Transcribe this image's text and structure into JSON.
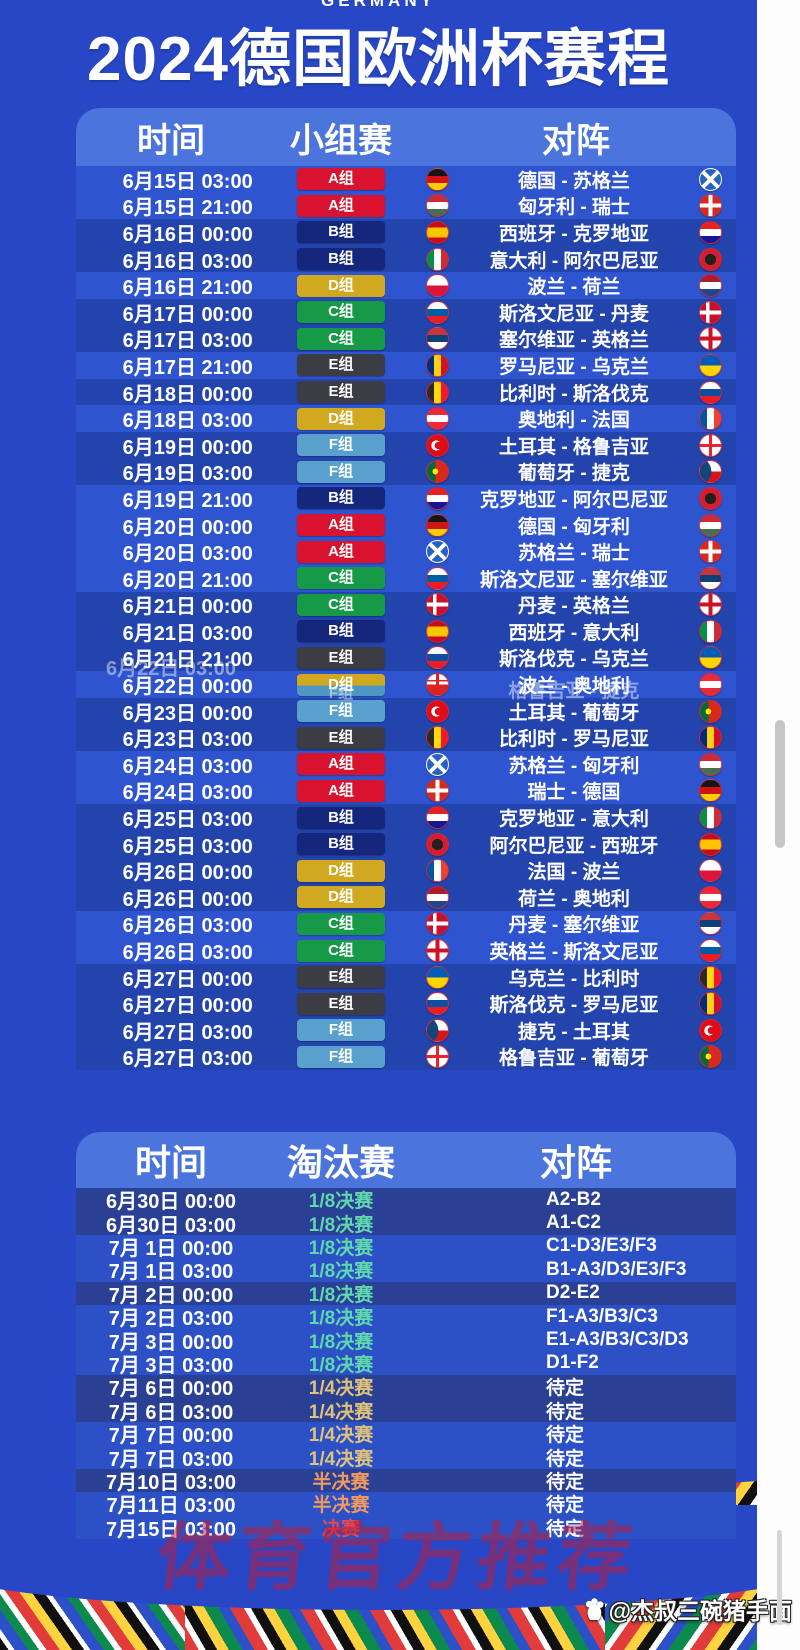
{
  "page": {
    "eyebrow": "GERMANY",
    "title": "2024德国欧洲杯赛程",
    "watermark": "体育官方推荐",
    "credit": "@杰叔三碗猪手面"
  },
  "colors": {
    "poster_blue": "#2847c7",
    "header_bar_blue": "#4b74dc",
    "row_light": "#2e54cf",
    "row_dark": "#2343ad",
    "group_A": "#d8122f",
    "group_B": "#15277d",
    "group_C": "#169a47",
    "group_D": "#d1a920",
    "group_E": "#3c3c44",
    "group_F": "#5aa0cf",
    "round_eighth": "#5fd8ac",
    "round_quarter": "#dec27c",
    "round_semi": "#f09a60",
    "round_final": "#e8474f",
    "watermark_red": "rgba(195,25,50,0.5)"
  },
  "group_table": {
    "columns": [
      "时间",
      "小组赛",
      "对阵"
    ],
    "rows": [
      {
        "time": "6月15日 03:00",
        "group": "A",
        "group_label": "A组",
        "home_flag": "germany",
        "match": "德国 - 苏格兰",
        "away_flag": "scotland",
        "shade": "l"
      },
      {
        "time": "6月15日 21:00",
        "group": "A",
        "group_label": "A组",
        "home_flag": "hungary",
        "match": "匈牙利 - 瑞士",
        "away_flag": "switzerland",
        "shade": "l"
      },
      {
        "time": "6月16日 00:00",
        "group": "B",
        "group_label": "B组",
        "home_flag": "spain",
        "match": "西班牙 - 克罗地亚",
        "away_flag": "croatia",
        "shade": "d"
      },
      {
        "time": "6月16日 03:00",
        "group": "B",
        "group_label": "B组",
        "home_flag": "italy",
        "match": "意大利 - 阿尔巴尼亚",
        "away_flag": "albania",
        "shade": "d"
      },
      {
        "time": "6月16日 21:00",
        "group": "D",
        "group_label": "D组",
        "home_flag": "poland",
        "match": "波兰 - 荷兰",
        "away_flag": "netherlands",
        "shade": "l"
      },
      {
        "time": "6月17日 00:00",
        "group": "C",
        "group_label": "C组",
        "home_flag": "slovenia",
        "match": "斯洛文尼亚 - 丹麦",
        "away_flag": "denmark",
        "shade": "d"
      },
      {
        "time": "6月17日 03:00",
        "group": "C",
        "group_label": "C组",
        "home_flag": "serbia",
        "match": "塞尔维亚 - 英格兰",
        "away_flag": "england",
        "shade": "d"
      },
      {
        "time": "6月17日 21:00",
        "group": "E",
        "group_label": "E组",
        "home_flag": "romania",
        "match": "罗马尼亚 - 乌克兰",
        "away_flag": "ukraine",
        "shade": "l"
      },
      {
        "time": "6月18日 00:00",
        "group": "E",
        "group_label": "E组",
        "home_flag": "belgium",
        "match": "比利时 - 斯洛伐克",
        "away_flag": "slovakia",
        "shade": "d"
      },
      {
        "time": "6月18日 03:00",
        "group": "D",
        "group_label": "D组",
        "home_flag": "austria",
        "match": "奥地利 - 法国",
        "away_flag": "france",
        "shade": "l"
      },
      {
        "time": "6月19日 00:00",
        "group": "F",
        "group_label": "F组",
        "home_flag": "turkey",
        "match": "土耳其 - 格鲁吉亚",
        "away_flag": "georgia",
        "shade": "d"
      },
      {
        "time": "6月19日 03:00",
        "group": "F",
        "group_label": "F组",
        "home_flag": "portugal",
        "match": "葡萄牙 - 捷克",
        "away_flag": "czech",
        "shade": "d"
      },
      {
        "time": "6月19日 21:00",
        "group": "B",
        "group_label": "B组",
        "home_flag": "croatia",
        "match": "克罗地亚 - 阿尔巴尼亚",
        "away_flag": "albania",
        "shade": "l"
      },
      {
        "time": "6月20日 00:00",
        "group": "A",
        "group_label": "A组",
        "home_flag": "germany",
        "match": "德国 - 匈牙利",
        "away_flag": "hungary",
        "shade": "l"
      },
      {
        "time": "6月20日 03:00",
        "group": "A",
        "group_label": "A组",
        "home_flag": "scotland",
        "match": "苏格兰 - 瑞士",
        "away_flag": "switzerland",
        "shade": "l"
      },
      {
        "time": "6月20日 21:00",
        "group": "C",
        "group_label": "C组",
        "home_flag": "slovenia",
        "match": "斯洛文尼亚 - 塞尔维亚",
        "away_flag": "serbia",
        "shade": "l"
      },
      {
        "time": "6月21日 00:00",
        "group": "C",
        "group_label": "C组",
        "home_flag": "denmark",
        "match": "丹麦 - 英格兰",
        "away_flag": "england",
        "shade": "d"
      },
      {
        "time": "6月21日 03:00",
        "group": "B",
        "group_label": "B组",
        "home_flag": "spain",
        "match": "西班牙 - 意大利",
        "away_flag": "italy",
        "shade": "d"
      },
      {
        "time": "6月21日 21:00",
        "group": "E",
        "group_label": "E组",
        "home_flag": "slovakia",
        "match": "斯洛伐克 - 乌克兰",
        "away_flag": "ukraine",
        "shade": "d"
      },
      {
        "time": "6月22日 00:00",
        "time_ghost": "6月22日 03:00",
        "group": "D",
        "group_label": "D组",
        "group_ghost": "F组",
        "home_flag": "glitch",
        "match": "波兰 - 奥地利",
        "match_ghost": "格鲁吉亚 - 捷克",
        "away_flag": "austria",
        "shade": "l",
        "glitch": true
      },
      {
        "time": "6月23日 00:00",
        "group": "F",
        "group_label": "F组",
        "home_flag": "turkey",
        "match": "土耳其 - 葡萄牙",
        "away_flag": "portugal",
        "shade": "d"
      },
      {
        "time": "6月23日 03:00",
        "group": "E",
        "group_label": "E组",
        "home_flag": "belgium",
        "match": "比利时 - 罗马尼亚",
        "away_flag": "romania",
        "shade": "d"
      },
      {
        "time": "6月24日 03:00",
        "group": "A",
        "group_label": "A组",
        "home_flag": "scotland",
        "match": "苏格兰 - 匈牙利",
        "away_flag": "hungary",
        "shade": "l"
      },
      {
        "time": "6月24日 03:00",
        "group": "A",
        "group_label": "A组",
        "home_flag": "switzerland",
        "match": "瑞士 - 德国",
        "away_flag": "germany",
        "shade": "l"
      },
      {
        "time": "6月25日 03:00",
        "group": "B",
        "group_label": "B组",
        "home_flag": "croatia",
        "match": "克罗地亚 - 意大利",
        "away_flag": "italy",
        "shade": "d"
      },
      {
        "time": "6月25日 03:00",
        "group": "B",
        "group_label": "B组",
        "home_flag": "albania",
        "match": "阿尔巴尼亚 - 西班牙",
        "away_flag": "spain",
        "shade": "d"
      },
      {
        "time": "6月26日 00:00",
        "group": "D",
        "group_label": "D组",
        "home_flag": "france",
        "match": "法国 - 波兰",
        "away_flag": "poland",
        "shade": "d"
      },
      {
        "time": "6月26日 00:00",
        "group": "D",
        "group_label": "D组",
        "home_flag": "netherlands",
        "match": "荷兰 - 奥地利",
        "away_flag": "austria",
        "shade": "d"
      },
      {
        "time": "6月26日 03:00",
        "group": "C",
        "group_label": "C组",
        "home_flag": "denmark",
        "match": "丹麦 - 塞尔维亚",
        "away_flag": "serbia",
        "shade": "l"
      },
      {
        "time": "6月26日 03:00",
        "group": "C",
        "group_label": "C组",
        "home_flag": "england",
        "match": "英格兰 - 斯洛文尼亚",
        "away_flag": "slovenia",
        "shade": "l"
      },
      {
        "time": "6月27日 00:00",
        "group": "E",
        "group_label": "E组",
        "home_flag": "ukraine",
        "match": "乌克兰 - 比利时",
        "away_flag": "belgium",
        "shade": "d"
      },
      {
        "time": "6月27日 00:00",
        "group": "E",
        "group_label": "E组",
        "home_flag": "slovakia",
        "match": "斯洛伐克 - 罗马尼亚",
        "away_flag": "romania",
        "shade": "d"
      },
      {
        "time": "6月27日 03:00",
        "group": "F",
        "group_label": "F组",
        "home_flag": "czech",
        "match": "捷克 - 土耳其",
        "away_flag": "turkey",
        "shade": "d"
      },
      {
        "time": "6月27日 03:00",
        "group": "F",
        "group_label": "F组",
        "home_flag": "georgia",
        "match": "格鲁吉亚 - 葡萄牙",
        "away_flag": "portugal",
        "shade": "d"
      }
    ]
  },
  "knockout_table": {
    "columns": [
      "时间",
      "淘汰赛",
      "对阵"
    ],
    "rows": [
      {
        "time": "6月30日 00:00",
        "round": "1/8决赛",
        "round_key": "r8",
        "match": "A2-B2",
        "shade": "d"
      },
      {
        "time": "6月30日 03:00",
        "round": "1/8决赛",
        "round_key": "r8",
        "match": "A1-C2",
        "shade": "d"
      },
      {
        "time": "7月 1日 00:00",
        "round": "1/8决赛",
        "round_key": "r8",
        "match": "C1-D3/E3/F3",
        "shade": "l"
      },
      {
        "time": "7月 1日 03:00",
        "round": "1/8决赛",
        "round_key": "r8",
        "match": "B1-A3/D3/E3/F3",
        "shade": "l"
      },
      {
        "time": "7月 2日 00:00",
        "round": "1/8决赛",
        "round_key": "r8",
        "match": "D2-E2",
        "shade": "d"
      },
      {
        "time": "7月 2日 03:00",
        "round": "1/8决赛",
        "round_key": "r8",
        "match": "F1-A3/B3/C3",
        "shade": "l"
      },
      {
        "time": "7月 3日 00:00",
        "round": "1/8决赛",
        "round_key": "r8",
        "match": "E1-A3/B3/C3/D3",
        "shade": "l"
      },
      {
        "time": "7月 3日 03:00",
        "round": "1/8决赛",
        "round_key": "r8",
        "match": "D1-F2",
        "shade": "l"
      },
      {
        "time": "7月 6日 00:00",
        "round": "1/4决赛",
        "round_key": "r4",
        "match": "待定",
        "shade": "d"
      },
      {
        "time": "7月 6日 03:00",
        "round": "1/4决赛",
        "round_key": "r4",
        "match": "待定",
        "shade": "d"
      },
      {
        "time": "7月 7日 00:00",
        "round": "1/4决赛",
        "round_key": "r4",
        "match": "待定",
        "shade": "l"
      },
      {
        "time": "7月 7日 03:00",
        "round": "1/4决赛",
        "round_key": "r4",
        "match": "待定",
        "shade": "l"
      },
      {
        "time": "7月10日 03:00",
        "round": "半决赛",
        "round_key": "sf",
        "match": "待定",
        "shade": "d"
      },
      {
        "time": "7月11日 03:00",
        "round": "半决赛",
        "round_key": "sf",
        "match": "待定",
        "shade": "l"
      },
      {
        "time": "7月15日 03:00",
        "round": "决赛",
        "round_key": "final",
        "match": "待定",
        "shade": "l"
      }
    ]
  }
}
